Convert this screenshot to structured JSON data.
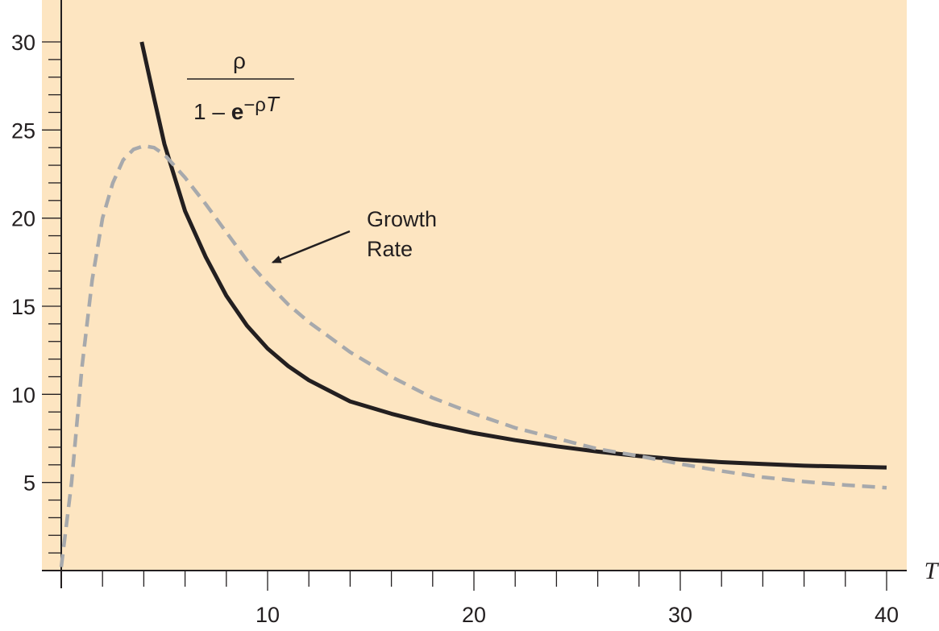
{
  "chart_data": {
    "type": "line",
    "xlabel": "T",
    "ylabel": "",
    "xlim": [
      0,
      40
    ],
    "ylim": [
      0,
      30
    ],
    "x_ticks": [
      10,
      20,
      30,
      40
    ],
    "y_ticks": [
      5,
      10,
      15,
      20,
      25,
      30
    ],
    "x_minor_step": 2,
    "y_minor_step": 1,
    "grid": false,
    "legend": "none",
    "series": [
      {
        "formula_label": {
          "numerator": "ρ",
          "denominator_prefix": "1 – ",
          "denominator_bold": "e",
          "denominator_suffix": "−ρ",
          "denominator_italic": "T"
        },
        "style": "solid",
        "color": "#231f20",
        "points": [
          [
            3.9,
            30
          ],
          [
            4.5,
            26.8
          ],
          [
            5,
            24.2
          ],
          [
            6,
            20.4
          ],
          [
            7,
            17.8
          ],
          [
            8,
            15.6
          ],
          [
            9,
            13.9
          ],
          [
            10,
            12.6
          ],
          [
            11,
            11.6
          ],
          [
            12,
            10.8
          ],
          [
            13,
            10.2
          ],
          [
            14,
            9.6
          ],
          [
            16,
            8.9
          ],
          [
            18,
            8.3
          ],
          [
            20,
            7.8
          ],
          [
            22,
            7.4
          ],
          [
            24,
            7.05
          ],
          [
            26,
            6.75
          ],
          [
            28,
            6.5
          ],
          [
            30,
            6.3
          ],
          [
            32,
            6.15
          ],
          [
            34,
            6.05
          ],
          [
            36,
            5.95
          ],
          [
            38,
            5.9
          ],
          [
            40,
            5.85
          ]
        ]
      },
      {
        "name": "Growth Rate",
        "style": "dashed",
        "color": "#a7a9ac",
        "points": [
          [
            0,
            0.2
          ],
          [
            0.5,
            5
          ],
          [
            1,
            11.5
          ],
          [
            1.5,
            16.5
          ],
          [
            2,
            20
          ],
          [
            2.5,
            22
          ],
          [
            3,
            23.3
          ],
          [
            3.5,
            23.9
          ],
          [
            4,
            24.1
          ],
          [
            4.5,
            24
          ],
          [
            5,
            23.6
          ],
          [
            6,
            22.3
          ],
          [
            7,
            20.8
          ],
          [
            8,
            19.2
          ],
          [
            9,
            17.6
          ],
          [
            10,
            16.3
          ],
          [
            11,
            15.1
          ],
          [
            12,
            14.1
          ],
          [
            14,
            12.4
          ],
          [
            16,
            11
          ],
          [
            18,
            9.8
          ],
          [
            20,
            8.9
          ],
          [
            22,
            8.1
          ],
          [
            24,
            7.5
          ],
          [
            26,
            6.9
          ],
          [
            28,
            6.5
          ],
          [
            30,
            6.05
          ],
          [
            32,
            5.65
          ],
          [
            34,
            5.3
          ],
          [
            36,
            5.05
          ],
          [
            38,
            4.85
          ],
          [
            40,
            4.7
          ]
        ]
      }
    ],
    "annotations": [
      {
        "lines": [
          "Growth",
          "Rate"
        ],
        "arrow_target": [
          10.1,
          17.4
        ]
      }
    ],
    "background": "#fde5c1"
  }
}
